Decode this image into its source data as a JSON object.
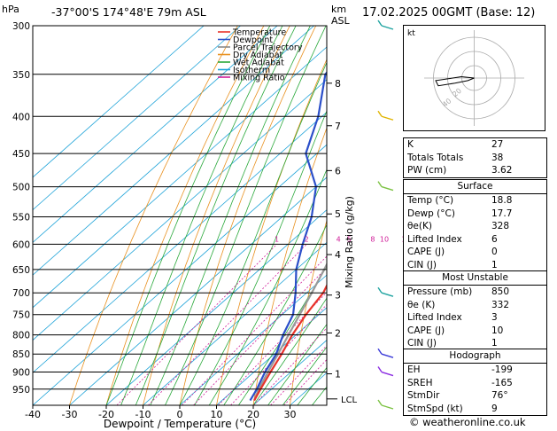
{
  "header": {
    "pressure_unit": "hPa",
    "location": "-37°00'S 174°48'E 79m ASL",
    "km_label": "km",
    "asl_label": "ASL",
    "datetime": "17.02.2025 00GMT (Base: 12)"
  },
  "chart_data": {
    "type": "skew-t",
    "xlabel": "Dewpoint / Temperature (°C)",
    "ylabel_right": "Mixing Ratio (g/kg)",
    "pressure_ticks": [
      300,
      350,
      400,
      450,
      500,
      550,
      600,
      650,
      700,
      750,
      800,
      850,
      900,
      950
    ],
    "temp_ticks": [
      -40,
      -30,
      -20,
      -10,
      0,
      10,
      20,
      30
    ],
    "xlim": [
      -40,
      40
    ],
    "ylim_hpa": [
      1000,
      300
    ],
    "km_ticks": [
      {
        "km": "1",
        "p": 905
      },
      {
        "km": "2",
        "p": 795
      },
      {
        "km": "3",
        "p": 705
      },
      {
        "km": "4",
        "p": 620
      },
      {
        "km": "5",
        "p": 545
      },
      {
        "km": "6",
        "p": 475
      },
      {
        "km": "7",
        "p": 412
      },
      {
        "km": "8",
        "p": 360
      }
    ],
    "lcl_label": "LCL",
    "lcl_p": 980,
    "mixing_ratio_lines": [
      "1",
      "2",
      "4",
      "5",
      "8",
      "10",
      "15",
      "20",
      "25"
    ],
    "legend": [
      {
        "name": "Temperature",
        "color": "#e8332a"
      },
      {
        "name": "Dewpoint",
        "color": "#2b4fc9"
      },
      {
        "name": "Parcel Trajectory",
        "color": "#888888"
      },
      {
        "name": "Dry Adiabat",
        "color": "#e8901e"
      },
      {
        "name": "Wet Adiabat",
        "color": "#29a83a"
      },
      {
        "name": "Isotherm",
        "color": "#1ea3d8"
      },
      {
        "name": "Mixing Ratio",
        "color": "#d0209a"
      }
    ],
    "temperature": [
      {
        "p": 985,
        "t": 18.8
      },
      {
        "p": 950,
        "t": 17.0
      },
      {
        "p": 900,
        "t": 14.5
      },
      {
        "p": 850,
        "t": 12.0
      },
      {
        "p": 800,
        "t": 9.0
      },
      {
        "p": 750,
        "t": 6.5
      },
      {
        "p": 700,
        "t": 4.5
      },
      {
        "p": 650,
        "t": 0.5
      },
      {
        "p": 600,
        "t": -4.0
      },
      {
        "p": 550,
        "t": -9.0
      },
      {
        "p": 500,
        "t": -14.5
      },
      {
        "p": 450,
        "t": -20.5
      },
      {
        "p": 400,
        "t": -28.0
      },
      {
        "p": 350,
        "t": -37.0
      },
      {
        "p": 320,
        "t": -43.0
      },
      {
        "p": 300,
        "t": -47.0
      }
    ],
    "dewpoint": [
      {
        "p": 985,
        "t": 17.7
      },
      {
        "p": 950,
        "t": 16.0
      },
      {
        "p": 900,
        "t": 13.0
      },
      {
        "p": 850,
        "t": 10.5
      },
      {
        "p": 800,
        "t": 6.5
      },
      {
        "p": 750,
        "t": 3.0
      },
      {
        "p": 700,
        "t": -3.0
      },
      {
        "p": 650,
        "t": -10.0
      },
      {
        "p": 600,
        "t": -16.0
      },
      {
        "p": 550,
        "t": -22.0
      },
      {
        "p": 500,
        "t": -30.0
      },
      {
        "p": 450,
        "t": -43.0
      },
      {
        "p": 400,
        "t": -51.0
      },
      {
        "p": 350,
        "t": -62.0
      },
      {
        "p": 300,
        "t": -66.0
      }
    ],
    "parcel": [
      {
        "p": 985,
        "t": 18.8
      },
      {
        "p": 950,
        "t": 16.5
      },
      {
        "p": 900,
        "t": 13.8
      },
      {
        "p": 850,
        "t": 11.0
      },
      {
        "p": 800,
        "t": 8.0
      },
      {
        "p": 750,
        "t": 4.8
      },
      {
        "p": 700,
        "t": 1.4
      },
      {
        "p": 650,
        "t": -2.4
      },
      {
        "p": 600,
        "t": -6.6
      },
      {
        "p": 550,
        "t": -11.5
      },
      {
        "p": 500,
        "t": -17.2
      },
      {
        "p": 450,
        "t": -23.8
      },
      {
        "p": 400,
        "t": -31.5
      },
      {
        "p": 350,
        "t": -40.5
      },
      {
        "p": 300,
        "t": -51.0
      }
    ],
    "wind_barb_levels": [
      {
        "p": 300,
        "color": "#1ea3a0"
      },
      {
        "p": 400,
        "color": "#e0b400"
      },
      {
        "p": 500,
        "color": "#7cc243"
      },
      {
        "p": 700,
        "color": "#1ea3a0"
      },
      {
        "p": 850,
        "color": "#3a3ad8"
      },
      {
        "p": 900,
        "color": "#8a2be2"
      },
      {
        "p": 1000,
        "color": "#7cc243"
      }
    ]
  },
  "hodograph": {
    "label": "kt",
    "ring_labels": [
      "20",
      "40"
    ],
    "points": [
      [
        0,
        0
      ],
      [
        -5,
        -2
      ],
      [
        -15,
        -4
      ],
      [
        -28,
        -6
      ],
      [
        -30,
        -2
      ],
      [
        -10,
        1
      ],
      [
        0,
        0
      ]
    ]
  },
  "indices": {
    "rows": [
      {
        "label": "K",
        "value": "27"
      },
      {
        "label": "Totals Totals",
        "value": "38"
      },
      {
        "label": "PW (cm)",
        "value": "3.62"
      }
    ]
  },
  "surface": {
    "title": "Surface",
    "rows": [
      {
        "label": "Temp (°C)",
        "value": "18.8"
      },
      {
        "label": "Dewp (°C)",
        "value": "17.7"
      },
      {
        "label": "θe(K)",
        "value": "328"
      },
      {
        "label": "Lifted Index",
        "value": "6"
      },
      {
        "label": "CAPE (J)",
        "value": "0"
      },
      {
        "label": "CIN (J)",
        "value": "1"
      }
    ]
  },
  "most_unstable": {
    "title": "Most Unstable",
    "rows": [
      {
        "label": "Pressure (mb)",
        "value": "850"
      },
      {
        "label": "θe (K)",
        "value": "332"
      },
      {
        "label": "Lifted Index",
        "value": "3"
      },
      {
        "label": "CAPE (J)",
        "value": "10"
      },
      {
        "label": "CIN (J)",
        "value": "1"
      }
    ]
  },
  "hodograph_stats": {
    "title": "Hodograph",
    "rows": [
      {
        "label": "EH",
        "value": "-199"
      },
      {
        "label": "SREH",
        "value": "-165"
      },
      {
        "label": "StmDir",
        "value": "76°"
      },
      {
        "label": "StmSpd (kt)",
        "value": "9"
      }
    ]
  },
  "credit": "© weatheronline.co.uk"
}
